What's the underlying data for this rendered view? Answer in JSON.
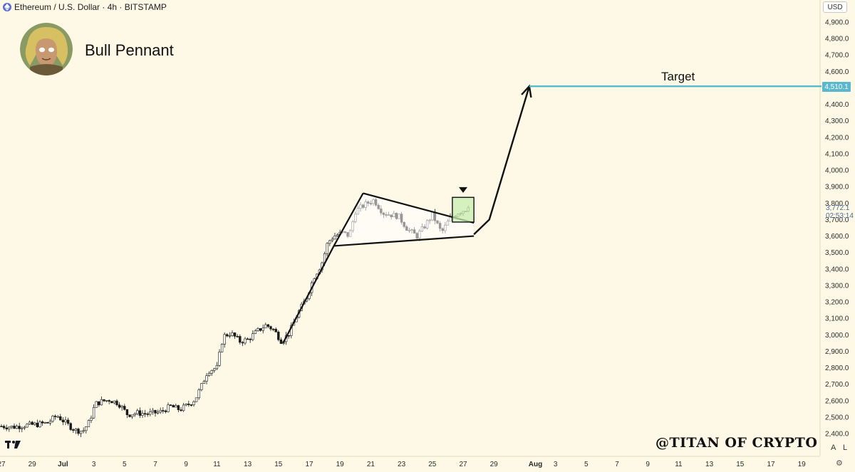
{
  "header": {
    "symbol_line": "Ethereum / U.S. Dollar · 4h · BITSTAMP",
    "icon": "ethereum-logo-icon"
  },
  "currency_selector": "USD",
  "pattern_title": "Bull Pennant",
  "target_label": "Target",
  "watermark": "@TITAN OF CRYPTO",
  "axis_controls": {
    "auto": "A",
    "log": "L",
    "settings_icon": "gear-icon"
  },
  "current_price": {
    "value": "3,772.1",
    "countdown": "02:53:14"
  },
  "chart_data": {
    "type": "candlestick",
    "title": "Ethereum / U.S. Dollar · 4h · BITSTAMP",
    "timeframe": "4h",
    "xlabel": "",
    "ylabel": "",
    "y_axis": {
      "ylim": [
        2350,
        4950
      ],
      "tick_labels": [
        "4,900.0",
        "4,800.0",
        "4,700.0",
        "4,600.0",
        "4,500.0",
        "4,400.0",
        "4,300.0",
        "4,200.0",
        "4,100.0",
        "4,000.0",
        "3,900.0",
        "3,800.0",
        "3,700.0",
        "3,600.0",
        "3,500.0",
        "3,400.0",
        "3,300.0",
        "3,200.0",
        "3,100.0",
        "3,000.0",
        "2,900.0",
        "2,800.0",
        "2,700.0",
        "2,600.0",
        "2,500.0",
        "2,400.0"
      ],
      "tick_values": [
        4900,
        4800,
        4700,
        4600,
        4500,
        4400,
        4300,
        4200,
        4100,
        4000,
        3900,
        3800,
        3700,
        3600,
        3500,
        3400,
        3300,
        3200,
        3100,
        3000,
        2900,
        2800,
        2700,
        2600,
        2500,
        2400
      ]
    },
    "x_axis": {
      "day_range": [
        27,
        80
      ],
      "tick_labels": [
        "27",
        "29",
        "Jul",
        "3",
        "5",
        "7",
        "9",
        "11",
        "13",
        "15",
        "17",
        "19",
        "21",
        "23",
        "25",
        "27",
        "29",
        "Aug",
        "3",
        "5",
        "7",
        "9",
        "11",
        "13",
        "15",
        "17",
        "19"
      ],
      "tick_days": [
        27,
        29,
        31,
        33,
        35,
        37,
        39,
        41,
        43,
        45,
        47,
        49,
        51,
        53,
        55,
        57,
        59,
        61.7,
        63,
        65,
        67,
        69,
        71,
        73,
        75,
        77,
        79
      ]
    },
    "target_price": {
      "value": 4510.1,
      "label": "4,510.1"
    },
    "last_price": 3772.1,
    "price_path": [
      [
        27.0,
        2445
      ],
      [
        27.8,
        2440
      ],
      [
        28.5,
        2450
      ],
      [
        29.3,
        2455
      ],
      [
        30.0,
        2465
      ],
      [
        30.6,
        2510
      ],
      [
        31.3,
        2455
      ],
      [
        31.8,
        2420
      ],
      [
        32.3,
        2415
      ],
      [
        32.7,
        2470
      ],
      [
        33.1,
        2580
      ],
      [
        33.5,
        2595
      ],
      [
        34.0,
        2605
      ],
      [
        34.6,
        2585
      ],
      [
        35.2,
        2515
      ],
      [
        35.8,
        2525
      ],
      [
        36.5,
        2520
      ],
      [
        37.3,
        2530
      ],
      [
        38.0,
        2565
      ],
      [
        38.6,
        2545
      ],
      [
        39.2,
        2580
      ],
      [
        39.6,
        2610
      ],
      [
        40.0,
        2690
      ],
      [
        40.4,
        2780
      ],
      [
        41.0,
        2800
      ],
      [
        41.4,
        2990
      ],
      [
        41.9,
        3010
      ],
      [
        42.5,
        2960
      ],
      [
        43.0,
        2970
      ],
      [
        43.6,
        3020
      ],
      [
        44.2,
        3060
      ],
      [
        44.7,
        3030
      ],
      [
        45.2,
        2960
      ],
      [
        45.7,
        3010
      ],
      [
        46.2,
        3120
      ],
      [
        46.8,
        3220
      ],
      [
        47.3,
        3350
      ],
      [
        47.8,
        3430
      ],
      [
        48.2,
        3560
      ],
      [
        48.6,
        3600
      ],
      [
        49.2,
        3620
      ],
      [
        49.6,
        3600
      ],
      [
        50.0,
        3750
      ],
      [
        50.6,
        3790
      ],
      [
        51.2,
        3820
      ],
      [
        51.8,
        3740
      ],
      [
        52.3,
        3730
      ],
      [
        52.8,
        3720
      ],
      [
        53.4,
        3640
      ],
      [
        54.0,
        3600
      ],
      [
        54.5,
        3660
      ],
      [
        55.0,
        3730
      ],
      [
        55.6,
        3620
      ],
      [
        56.1,
        3700
      ],
      [
        56.6,
        3740
      ],
      [
        57.1,
        3760
      ],
      [
        57.4,
        3772
      ]
    ],
    "annotations": {
      "flagpole": {
        "from": [
          48.6,
          3540
        ],
        "to": [
          50.5,
          3860
        ]
      },
      "pennant_upper": {
        "from": [
          50.5,
          3860
        ],
        "to": [
          57.7,
          3680
        ]
      },
      "pennant_lower": {
        "from": [
          48.6,
          3540
        ],
        "to": [
          57.7,
          3600
        ]
      },
      "breakout_box": {
        "x": [
          56.3,
          57.7
        ],
        "y": [
          3685,
          3835
        ]
      },
      "breakout_marker_price": 3880,
      "projection_path": [
        [
          57.7,
          3610
        ],
        [
          58.7,
          3700
        ],
        [
          61.3,
          4510
        ]
      ],
      "target_line": {
        "from_day": 61.3,
        "to_day": 80.2,
        "price": 4510.1
      }
    },
    "grid": false,
    "legend": "none"
  }
}
